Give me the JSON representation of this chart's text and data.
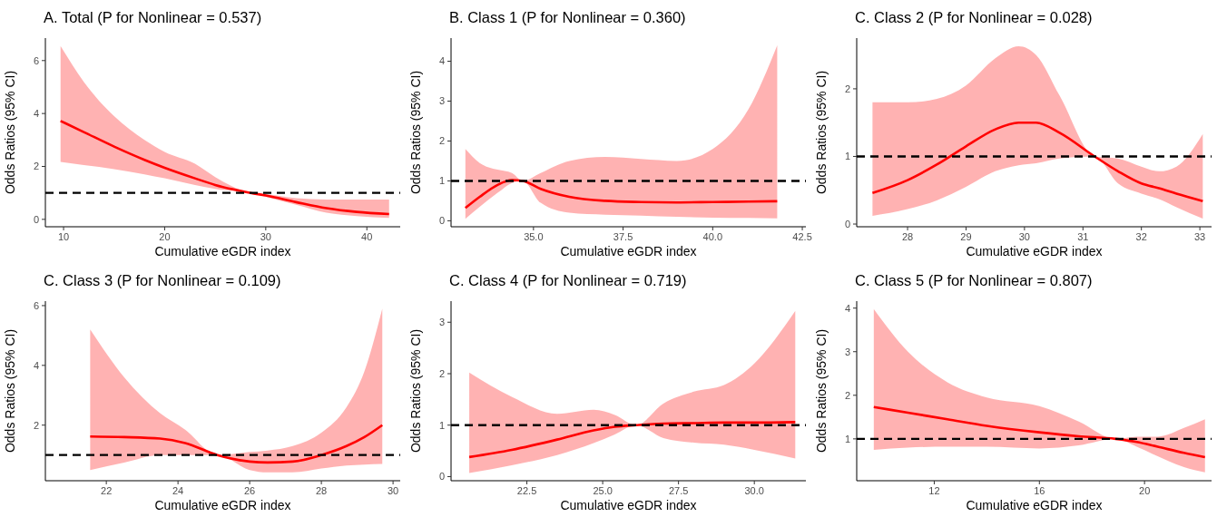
{
  "chart_data": [
    {
      "type": "line",
      "title": "A. Total (P for Nonlinear = 0.537)",
      "xlabel": "Cumulative eGDR index",
      "ylabel": "Odds Ratios (95% CI)",
      "xlim": [
        8.2,
        43.3
      ],
      "ylim": [
        -0.28,
        6.85
      ],
      "xticks": [
        10,
        20,
        30,
        40
      ],
      "yticks": [
        0,
        2,
        4,
        6
      ],
      "x": [
        9.7,
        12,
        15,
        18,
        20,
        23,
        25,
        28.5,
        30,
        33,
        36,
        39,
        42.2
      ],
      "series": [
        {
          "color": "#ff0000",
          "values": [
            3.72,
            3.3,
            2.75,
            2.25,
            1.95,
            1.55,
            1.3,
            1.0,
            0.9,
            0.65,
            0.42,
            0.28,
            0.2
          ],
          "lower": [
            2.17,
            2.05,
            1.9,
            1.7,
            1.55,
            1.3,
            1.15,
            1.0,
            0.85,
            0.55,
            0.25,
            0.12,
            0.05
          ],
          "upper": [
            6.55,
            5.2,
            3.9,
            3.0,
            2.55,
            2.1,
            1.6,
            1.0,
            0.95,
            0.8,
            0.75,
            0.75,
            0.75
          ]
        }
      ],
      "ref_lines": [
        {
          "axis": "y",
          "value": 1,
          "color": "#000000",
          "line_style": "dashed"
        }
      ]
    },
    {
      "type": "line",
      "title": "B. Class 1 (P for Nonlinear = 0.360)",
      "xlabel": "Cumulative eGDR index",
      "ylabel": "Odds Ratios (95% CI)",
      "xlim": [
        32.7,
        42.6
      ],
      "ylim": [
        -0.15,
        4.58
      ],
      "xticks": [
        {
          "value": 35,
          "label": "35.0"
        },
        {
          "value": 37.5,
          "label": "37.5"
        },
        {
          "value": 40,
          "label": "40.0"
        },
        {
          "value": 42.5,
          "label": "42.5"
        }
      ],
      "yticks": [
        0,
        1,
        2,
        3,
        4
      ],
      "x": [
        33.1,
        33.5,
        34.0,
        34.4,
        34.7,
        35.2,
        36,
        37,
        38,
        39,
        40,
        41,
        41.8
      ],
      "series": [
        {
          "color": "#ff0000",
          "values": [
            0.32,
            0.6,
            0.9,
            1.02,
            1.0,
            0.8,
            0.6,
            0.5,
            0.47,
            0.46,
            0.47,
            0.48,
            0.49
          ],
          "lower": [
            0.05,
            0.35,
            0.7,
            0.95,
            1.0,
            0.45,
            0.2,
            0.15,
            0.13,
            0.1,
            0.08,
            0.07,
            0.06
          ],
          "upper": [
            1.8,
            1.45,
            1.28,
            1.2,
            1.0,
            1.2,
            1.5,
            1.6,
            1.55,
            1.5,
            1.8,
            2.8,
            4.4
          ]
        }
      ],
      "ref_lines": [
        {
          "axis": "y",
          "value": 1,
          "color": "#000000",
          "line_style": "dashed"
        }
      ]
    },
    {
      "type": "line",
      "title": "C. Class 2 (P for Nonlinear = 0.028)",
      "xlabel": "Cumulative eGDR index",
      "ylabel": "Odds Ratios (95% CI)",
      "xlim": [
        27.13,
        33.2
      ],
      "ylim": [
        -0.04,
        2.75
      ],
      "xticks": [
        28,
        29,
        30,
        31,
        32,
        33
      ],
      "yticks": [
        0,
        1,
        2
      ],
      "x": [
        27.4,
        28,
        28.5,
        29,
        29.5,
        29.9,
        30.2,
        30.6,
        31.2,
        31.6,
        32,
        32.3,
        32.6,
        33.05
      ],
      "series": [
        {
          "color": "#ff0000",
          "values": [
            0.46,
            0.65,
            0.88,
            1.15,
            1.4,
            1.5,
            1.5,
            1.35,
            1.0,
            0.78,
            0.6,
            0.53,
            0.45,
            0.34
          ],
          "lower": [
            0.12,
            0.22,
            0.35,
            0.55,
            0.78,
            0.87,
            0.9,
            0.97,
            1.0,
            0.6,
            0.45,
            0.37,
            0.25,
            0.08
          ],
          "upper": [
            1.8,
            1.8,
            1.85,
            2.05,
            2.45,
            2.63,
            2.5,
            1.9,
            1.0,
            0.97,
            0.85,
            0.78,
            0.85,
            1.33
          ]
        }
      ],
      "ref_lines": [
        {
          "axis": "y",
          "value": 1,
          "color": "#000000",
          "line_style": "dashed"
        }
      ]
    },
    {
      "type": "line",
      "title": "C. Class 3 (P for Nonlinear = 0.109)",
      "xlabel": "Cumulative eGDR index",
      "ylabel": "Odds Ratios (95% CI)",
      "xlim": [
        20.3,
        30.2
      ],
      "ylim": [
        0.14,
        6.15
      ],
      "xticks": [
        22,
        24,
        26,
        28,
        30
      ],
      "yticks": [
        2,
        4,
        6
      ],
      "x": [
        21.55,
        22.5,
        23.5,
        24.2,
        25.1,
        26,
        26.5,
        27.2,
        28,
        28.7,
        29.2,
        29.7
      ],
      "series": [
        {
          "color": "#ff0000",
          "values": [
            1.62,
            1.6,
            1.55,
            1.4,
            1.0,
            0.78,
            0.75,
            0.78,
            1.0,
            1.3,
            1.6,
            2.0
          ],
          "lower": [
            0.5,
            0.75,
            1.0,
            1.0,
            1.0,
            0.5,
            0.42,
            0.42,
            0.55,
            0.65,
            0.68,
            0.7
          ],
          "upper": [
            5.2,
            3.6,
            2.4,
            1.85,
            1.0,
            1.1,
            1.15,
            1.3,
            1.75,
            2.6,
            3.8,
            5.9
          ]
        }
      ],
      "ref_lines": [
        {
          "axis": "y",
          "value": 1,
          "color": "#000000",
          "line_style": "dashed"
        }
      ]
    },
    {
      "type": "line",
      "title": "C. Class 4 (P for Nonlinear = 0.719)",
      "xlabel": "Cumulative eGDR index",
      "ylabel": "Odds Ratios (95% CI)",
      "xlim": [
        20.0,
        31.7
      ],
      "ylim": [
        -0.08,
        3.41
      ],
      "xticks": [
        {
          "value": 22.5,
          "label": "22.5"
        },
        {
          "value": 25,
          "label": "25.0"
        },
        {
          "value": 27.5,
          "label": "27.5"
        },
        {
          "value": 30,
          "label": "30.0"
        }
      ],
      "yticks": [
        0,
        1,
        2,
        3
      ],
      "x": [
        20.6,
        22,
        23.5,
        24.7,
        25.4,
        26.1,
        27,
        28,
        29,
        30,
        31.35
      ],
      "series": [
        {
          "color": "#ff0000",
          "values": [
            0.38,
            0.52,
            0.72,
            0.9,
            0.97,
            1.0,
            1.03,
            1.04,
            1.05,
            1.05,
            1.06
          ],
          "lower": [
            0.07,
            0.22,
            0.42,
            0.65,
            0.82,
            1.0,
            0.75,
            0.66,
            0.62,
            0.52,
            0.35
          ],
          "upper": [
            2.02,
            1.55,
            1.22,
            1.3,
            1.2,
            1.0,
            1.42,
            1.65,
            1.78,
            2.2,
            3.22
          ]
        }
      ],
      "ref_lines": [
        {
          "axis": "y",
          "value": 1,
          "color": "#000000",
          "line_style": "dashed"
        }
      ]
    },
    {
      "type": "line",
      "title": "C. Class 5 (P for Nonlinear = 0.807)",
      "xlabel": "Cumulative eGDR index",
      "ylabel": "Odds Ratios (95% CI)",
      "xlim": [
        9.05,
        22.55
      ],
      "ylim": [
        0.04,
        4.16
      ],
      "xticks": [
        12,
        16,
        20
      ],
      "yticks": [
        1,
        2,
        3,
        4
      ],
      "x": [
        9.7,
        11,
        12.5,
        14,
        16,
        17.5,
        18.9,
        19.7,
        20.5,
        21.5,
        22.3
      ],
      "series": [
        {
          "color": "#ff0000",
          "values": [
            1.73,
            1.6,
            1.45,
            1.3,
            1.15,
            1.06,
            1.0,
            0.93,
            0.82,
            0.68,
            0.58
          ],
          "lower": [
            0.75,
            0.8,
            0.82,
            0.82,
            0.78,
            0.85,
            1.0,
            0.82,
            0.6,
            0.35,
            0.23
          ],
          "upper": [
            3.98,
            3.0,
            2.3,
            1.95,
            1.75,
            1.4,
            1.0,
            1.05,
            1.05,
            1.25,
            1.45
          ]
        }
      ],
      "ref_lines": [
        {
          "axis": "y",
          "value": 1,
          "color": "#000000",
          "line_style": "dashed"
        }
      ]
    }
  ]
}
